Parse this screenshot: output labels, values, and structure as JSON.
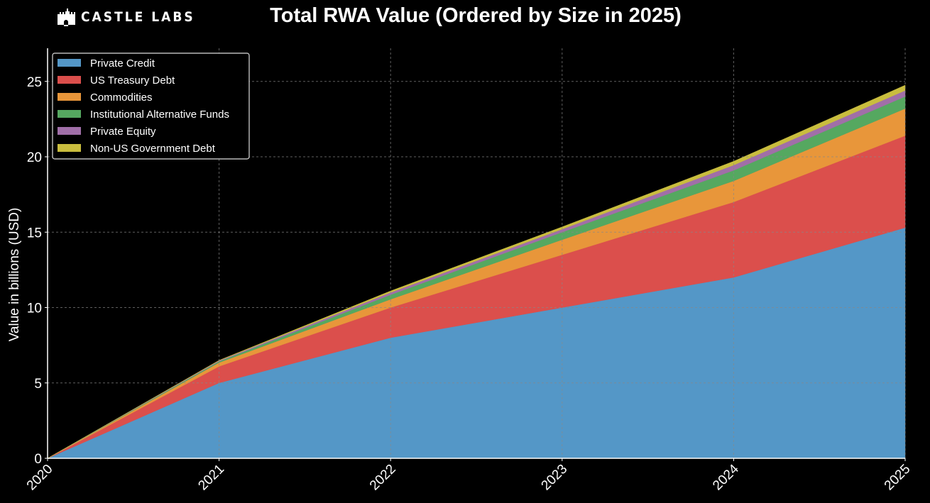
{
  "brand": {
    "name": "CASTLE LABS",
    "icon": "castle-icon"
  },
  "chart_data": {
    "type": "area",
    "stacked": true,
    "title": "Total RWA Value (Ordered by Size in 2025)",
    "xlabel": "",
    "ylabel": "Value in billions (USD)",
    "x": [
      "2020",
      "2021",
      "2022",
      "2023",
      "2024",
      "2025"
    ],
    "xlim": [
      2020,
      2025
    ],
    "ylim": [
      0,
      27.2
    ],
    "yticks": [
      0,
      5,
      10,
      15,
      20,
      25
    ],
    "grid": true,
    "legend_position": "top-left",
    "background": "#000000",
    "series": [
      {
        "name": "Private Credit",
        "color": "#5497c7",
        "values": [
          0,
          5.0,
          8.0,
          10.0,
          12.0,
          15.3
        ]
      },
      {
        "name": "US Treasury Debt",
        "color": "#db4f4c",
        "values": [
          0,
          1.1,
          2.0,
          3.5,
          5.0,
          6.1
        ]
      },
      {
        "name": "Commodities",
        "color": "#e8963a",
        "values": [
          0,
          0.25,
          0.55,
          1.0,
          1.4,
          1.8
        ]
      },
      {
        "name": "Institutional Alternative Funds",
        "color": "#55a860",
        "values": [
          0,
          0.08,
          0.3,
          0.5,
          0.7,
          0.8
        ]
      },
      {
        "name": "Private Equity",
        "color": "#a06fa8",
        "values": [
          0,
          0.05,
          0.15,
          0.2,
          0.35,
          0.4
        ]
      },
      {
        "name": "Non-US Government Debt",
        "color": "#c9bd3e",
        "values": [
          0,
          0.02,
          0.1,
          0.15,
          0.25,
          0.35
        ]
      }
    ]
  }
}
